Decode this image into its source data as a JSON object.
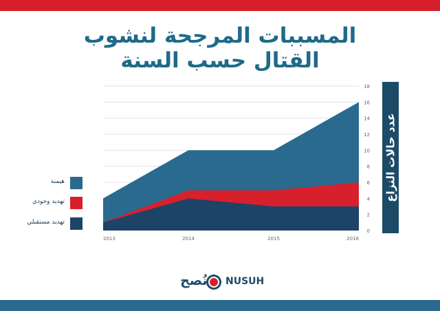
{
  "title": "المسببات المرجحة لنشوب القتال حسب السنة",
  "brand": {
    "arabic": "نُصح",
    "latin": "NUSUH"
  },
  "colors": {
    "red": "#d8202d",
    "blue": "#2a6a8e",
    "navy": "#1c4b67",
    "series_hegemony": "#2a6a8e",
    "series_existential": "#d8202d",
    "series_future": "#1d4466"
  },
  "chart_data": {
    "type": "area",
    "stacked": false,
    "x": [
      "2013",
      "2014",
      "2015",
      "2016"
    ],
    "series": [
      {
        "name": "هيمنة",
        "values": [
          4,
          10,
          10,
          16
        ],
        "color": "#2a6a8e"
      },
      {
        "name": "تهديد وجودي",
        "values": [
          1,
          5,
          5,
          6
        ],
        "color": "#d8202d"
      },
      {
        "name": "تهديد مستقبلي",
        "values": [
          1,
          4,
          3,
          3
        ],
        "color": "#1d4466"
      }
    ],
    "ylabel": "عدد حالات النزاع",
    "ylim": [
      0,
      18
    ],
    "yticks": [
      "0",
      "2",
      "4",
      "6",
      "8",
      "10",
      "12",
      "14",
      "16",
      "18"
    ],
    "grid": true,
    "y_axis_side": "right",
    "legend": "left"
  }
}
